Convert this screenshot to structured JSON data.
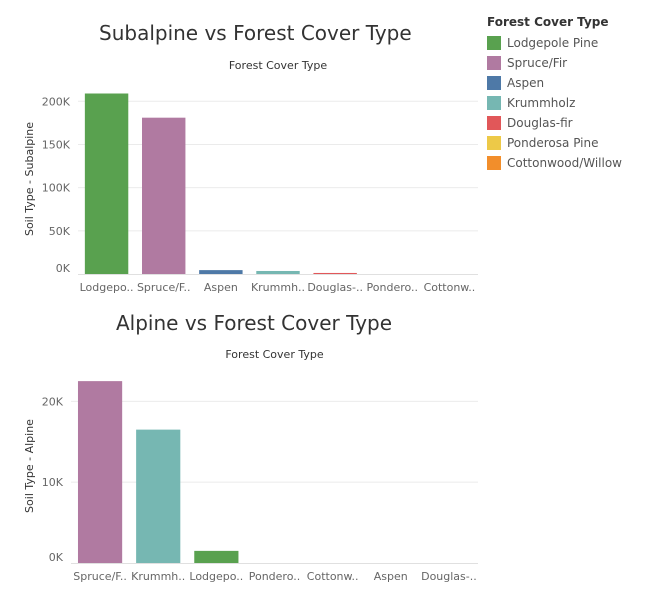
{
  "chart_data": [
    {
      "type": "bar",
      "title": "Subalpine vs Forest Cover Type",
      "xlabel": "Forest Cover Type",
      "ylabel": "Soil Type - Subalpine",
      "ylim": [
        0,
        220000
      ],
      "yticks": [
        0,
        50000,
        100000,
        150000,
        200000
      ],
      "ytick_labels": [
        "0K",
        "50K",
        "100K",
        "150K",
        "200K"
      ],
      "categories": [
        "Lodgepole Pine",
        "Spruce/Fir",
        "Aspen",
        "Krummholz",
        "Douglas-fir",
        "Ponderosa Pine",
        "Cottonwood/Willow"
      ],
      "category_labels": [
        "Lodgepo..",
        "Spruce/F..",
        "Aspen",
        "Krummh..",
        "Douglas-..",
        "Pondero..",
        "Cottonw.."
      ],
      "values": [
        209000,
        181000,
        4500,
        3500,
        1200,
        0,
        0
      ],
      "grid": true
    },
    {
      "type": "bar",
      "title": "Alpine vs Forest Cover Type",
      "xlabel": "Forest Cover Type",
      "ylabel": "Soil Type - Alpine",
      "ylim": [
        0,
        24000
      ],
      "yticks": [
        0,
        10000,
        20000
      ],
      "ytick_labels": [
        "0K",
        "10K",
        "20K"
      ],
      "categories": [
        "Spruce/Fir",
        "Krummholz",
        "Lodgepole Pine",
        "Ponderosa Pine",
        "Cottonwood/Willow",
        "Aspen",
        "Douglas-fir"
      ],
      "category_labels": [
        "Spruce/F..",
        "Krummh..",
        "Lodgepo..",
        "Pondero..",
        "Cottonw..",
        "Aspen",
        "Douglas-.."
      ],
      "values": [
        22500,
        16500,
        1500,
        0,
        0,
        0,
        0
      ],
      "grid": true
    }
  ],
  "legend": {
    "title": "Forest Cover Type",
    "placement": "top-right",
    "items": [
      {
        "label": "Lodgepole Pine",
        "color": "#59a14f"
      },
      {
        "label": "Spruce/Fir",
        "color": "#b07aa1"
      },
      {
        "label": "Aspen",
        "color": "#4e79a7"
      },
      {
        "label": "Krummholz",
        "color": "#76b7b2"
      },
      {
        "label": "Douglas-fir",
        "color": "#e15759"
      },
      {
        "label": "Ponderosa Pine",
        "color": "#edc948"
      },
      {
        "label": "Cottonwood/Willow",
        "color": "#f28e2b"
      }
    ]
  }
}
